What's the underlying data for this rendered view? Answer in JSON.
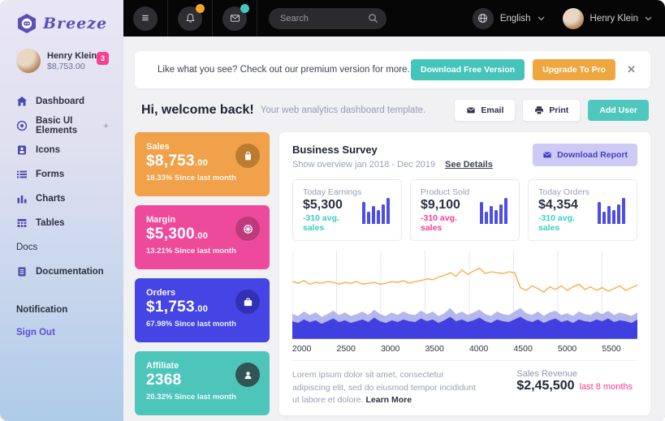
{
  "glyphs": {
    "hamburger": "≡",
    "close": "✕",
    "plus": "+"
  },
  "sidebar": {
    "logo_text": "Breeze",
    "profile": {
      "name": "Henry Klein",
      "amount": "$8,753.00",
      "badge": "3"
    },
    "items": [
      {
        "label": "Dashboard",
        "icon": "home-icon"
      },
      {
        "label": "Basic UI Elements",
        "icon": "target-icon",
        "suffix": "+"
      },
      {
        "label": "Icons",
        "icon": "badge-icon"
      },
      {
        "label": "Forms",
        "icon": "list-icon"
      },
      {
        "label": "Charts",
        "icon": "bar-chart-icon"
      },
      {
        "label": "Tables",
        "icon": "table-icon"
      }
    ],
    "section_label": "Docs",
    "documentation_label": "Documentation",
    "notification_label": "Notification",
    "signout_label": "Sign Out"
  },
  "navbar": {
    "search_placeholder": "Search",
    "language": "English",
    "user_name": "Henry Klein"
  },
  "banner": {
    "text": "Like what you see? Check out our premium version for more.",
    "download_label": "Download Free Version",
    "upgrade_label": "Upgrade To Pro"
  },
  "welcome": {
    "title": "Hi, welcome back!",
    "subtitle": "Your web analytics dashboard template.",
    "email_label": "Email",
    "print_label": "Print",
    "add_user_label": "Add User"
  },
  "stat_cards": [
    {
      "label": "Sales",
      "value": "$8,753",
      "decimals": ".00",
      "change": "18.33% Since last month",
      "color": "#f0a14a",
      "icon_bg": "#bc7c2f",
      "icon": "shopping-bag-icon"
    },
    {
      "label": "Margin",
      "value": "$5,300",
      "decimals": ".00",
      "change": "13.21% Since last month",
      "color": "#ee4a9b",
      "icon_bg": "#bd3a7b",
      "icon": "gift-icon"
    },
    {
      "label": "Orders",
      "value": "$1,753",
      "decimals": ".00",
      "change": "67.98% Since last month",
      "color": "#4545e5",
      "icon_bg": "#3231b4",
      "icon": "briefcase-icon"
    },
    {
      "label": "Affiliate",
      "value": "2368",
      "decimals": "",
      "change": "20.32% Since last month",
      "color": "#4ec5bb",
      "icon_bg": "#305552",
      "icon": "person-icon"
    }
  ],
  "survey": {
    "title": "Business Survey",
    "subtitle": "Show overview jan 2018 - Dec 2019",
    "see_details_label": "See Details",
    "download_report_label": "Download Report",
    "mini_cards": [
      {
        "label": "Today Earnings",
        "value": "$5,300",
        "note": "-310 avg. sales",
        "note_color": "#35cfc2"
      },
      {
        "label": "Product Sold",
        "value": "$9,100",
        "note": "-310 avg. sales",
        "note_color": "#f93b90"
      },
      {
        "label": "Today Orders",
        "value": "$4,354",
        "note": "-310 avg. sales",
        "note_color": "#35cfc2"
      }
    ],
    "footer": {
      "lorem": "Lorem ipsum dolor sit amet, consectetur adipiscing elit, sed do eiusmod tempor incididunt ut labore et dolore. ",
      "learn_more_label": "Learn More",
      "revenue_label": "Sales Revenue",
      "revenue_value": "$2,45,500",
      "revenue_note": "last 8 months"
    }
  },
  "chart_data": {
    "type": "area",
    "title": "Business Survey",
    "x_ticks": [
      "2000",
      "2500",
      "3000",
      "3500",
      "4000",
      "4500",
      "5000",
      "5500"
    ],
    "x_range": [
      2000,
      5900
    ],
    "tick_step_fraction": 0.1282,
    "ylim": [
      0,
      100
    ],
    "grid": "vertical",
    "colors": {
      "line": "#f6b14e",
      "area_light": "#b4b7ea",
      "area_dark": "#4040e0",
      "gridline": "#e5e5ea"
    },
    "series": [
      {
        "name": "orange-line",
        "type": "line",
        "values": [
          65,
          63,
          66,
          62,
          64,
          63,
          65,
          64,
          62,
          64,
          63,
          65,
          62,
          63,
          64,
          62,
          63,
          65,
          64,
          66,
          63,
          65,
          66,
          68,
          67,
          70,
          72,
          75,
          71,
          78,
          73,
          77,
          80,
          74,
          76,
          75,
          74,
          76,
          75,
          58,
          55,
          60,
          57,
          53,
          59,
          56,
          60,
          55,
          59,
          62,
          56,
          59,
          55,
          58,
          54,
          57,
          60,
          55,
          58,
          61
        ]
      },
      {
        "name": "stack-top-light",
        "type": "area",
        "values": [
          28,
          26,
          31,
          27,
          30,
          25,
          28,
          32,
          27,
          30,
          26,
          28,
          31,
          27,
          33,
          28,
          26,
          30,
          27,
          31,
          28,
          27,
          32,
          28,
          31,
          26,
          29,
          35,
          28,
          31,
          27,
          30,
          33,
          28,
          26,
          31,
          28,
          27,
          31,
          35,
          29,
          27,
          31,
          26,
          30,
          32,
          27,
          29,
          26,
          31,
          28,
          27,
          31,
          28,
          32,
          27,
          30,
          28,
          26,
          30
        ]
      },
      {
        "name": "stack-bottom-dark",
        "type": "area",
        "values": [
          20,
          18,
          22,
          19,
          21,
          17,
          20,
          23,
          19,
          21,
          18,
          20,
          22,
          19,
          24,
          20,
          18,
          21,
          19,
          22,
          20,
          19,
          23,
          20,
          22,
          18,
          21,
          25,
          20,
          22,
          19,
          21,
          24,
          20,
          18,
          22,
          20,
          19,
          22,
          25,
          21,
          19,
          22,
          18,
          21,
          23,
          19,
          21,
          18,
          22,
          20,
          19,
          22,
          20,
          23,
          19,
          21,
          20,
          18,
          22
        ]
      }
    ],
    "mini_bars": [
      80,
      45,
      65,
      50,
      70,
      95
    ]
  }
}
